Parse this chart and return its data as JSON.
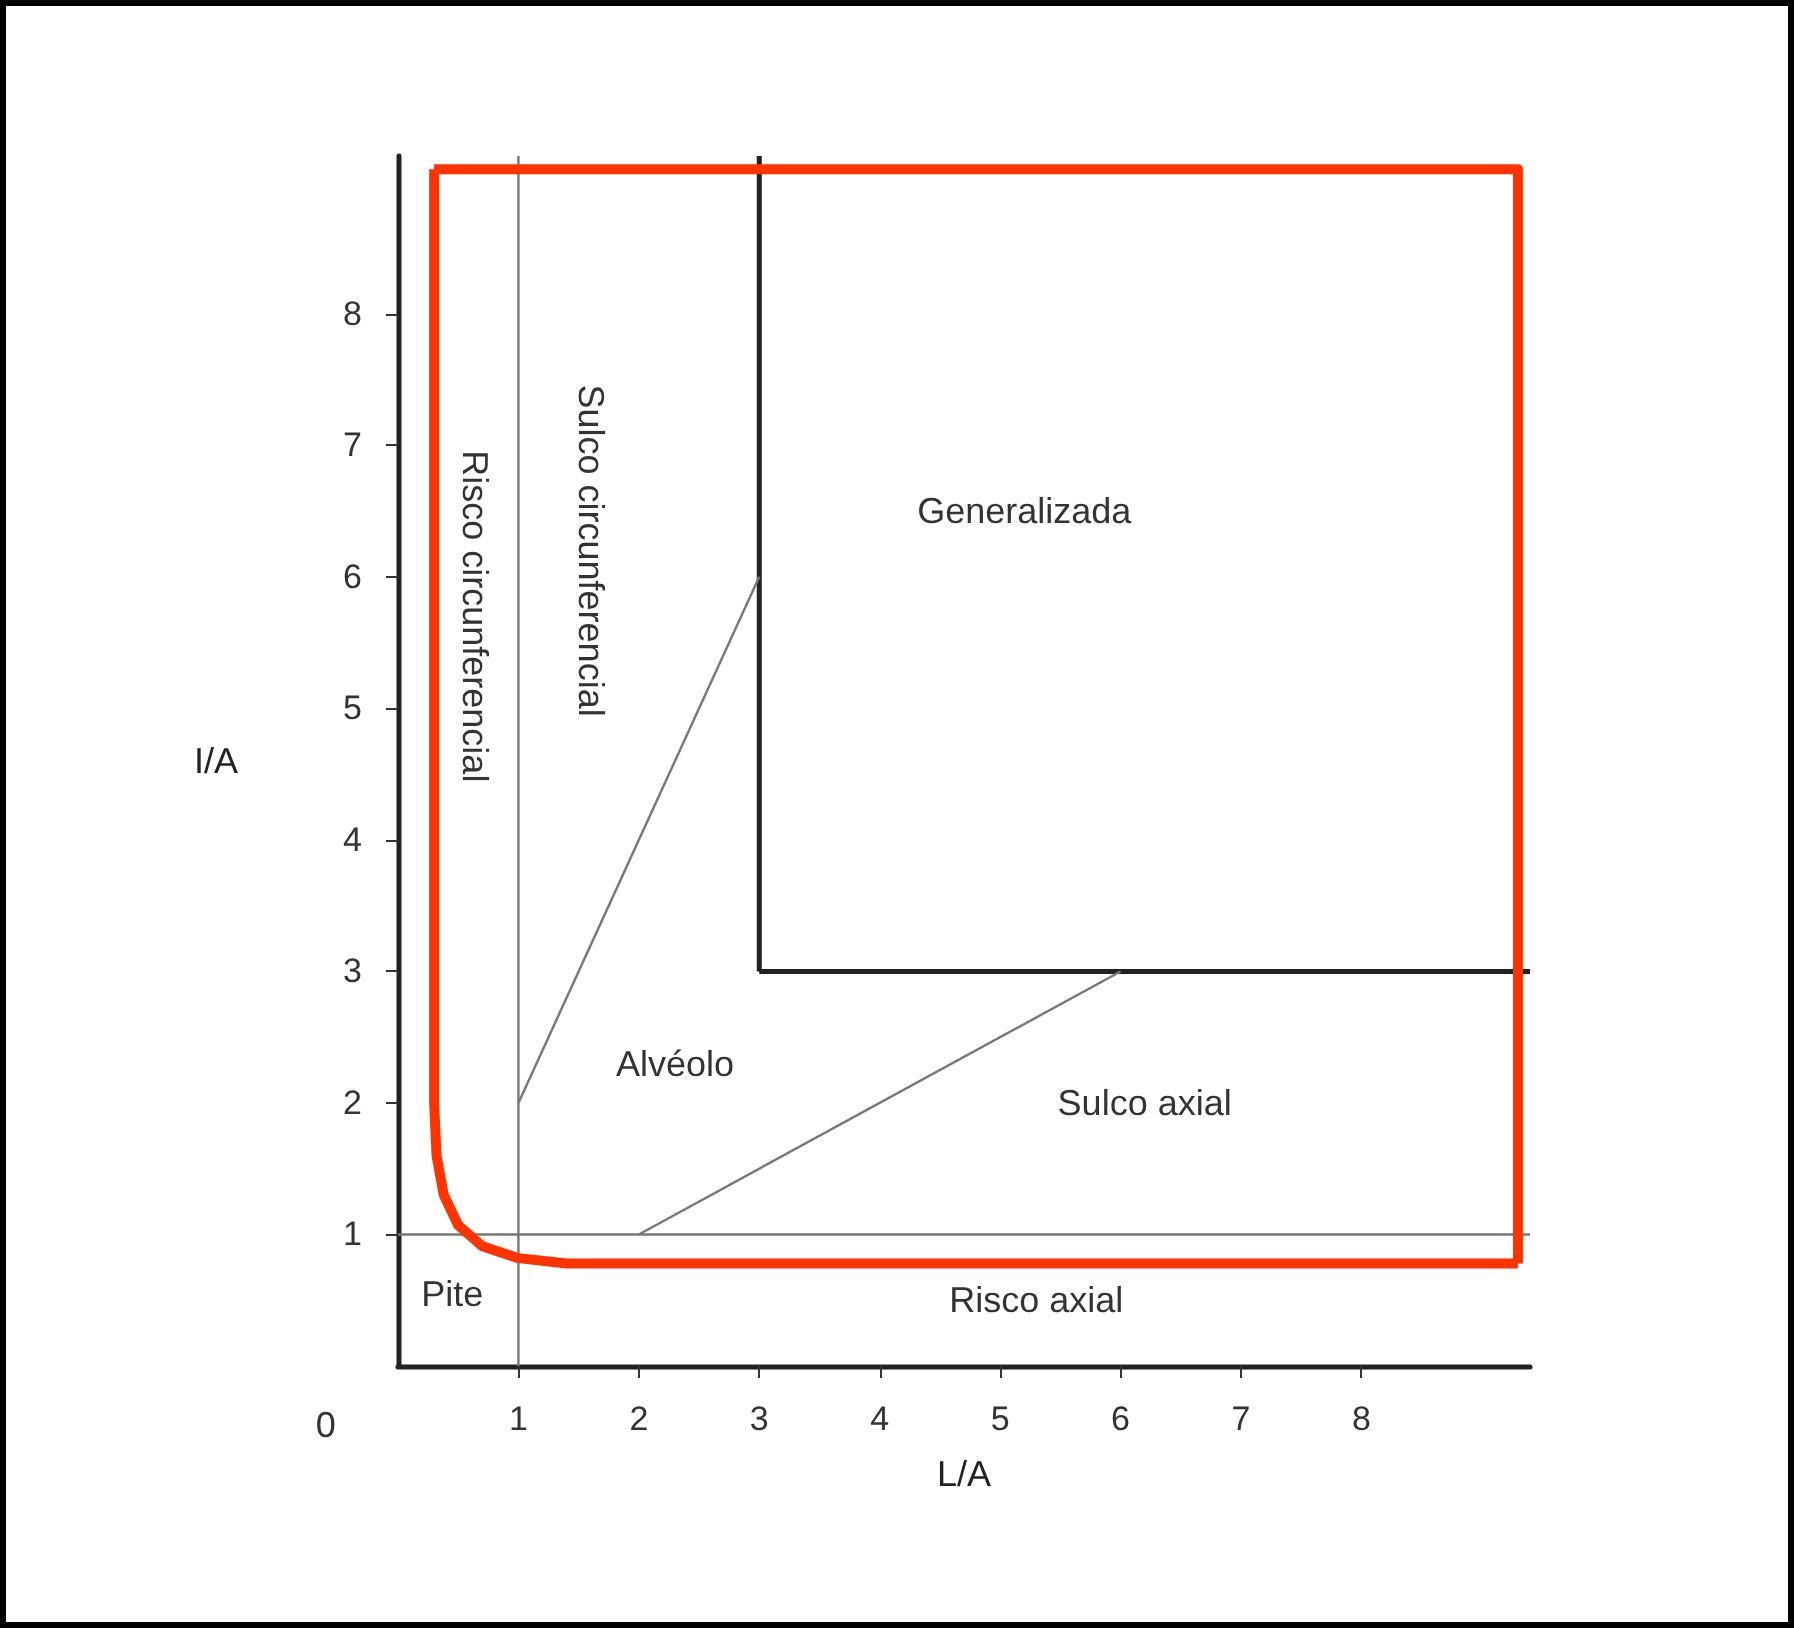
{
  "chart_data": {
    "type": "line",
    "xlabel": "L/A",
    "ylabel": "I/A",
    "xlim": [
      0,
      9.4
    ],
    "ylim": [
      0,
      9.2
    ],
    "xticks": [
      1,
      2,
      3,
      4,
      5,
      6,
      7,
      8
    ],
    "yticks": [
      1,
      2,
      3,
      4,
      5,
      6,
      7,
      8
    ],
    "grid": false,
    "marker": "none",
    "line_style": "solid",
    "series": [
      {
        "color": "#777777",
        "x": [
          1,
          1
        ],
        "values": [
          0,
          9.2
        ]
      },
      {
        "color": "#777777",
        "x": [
          0,
          9.4
        ],
        "values": [
          1,
          1
        ]
      },
      {
        "color": "#222222",
        "x": [
          3,
          3
        ],
        "values": [
          9.2,
          3
        ]
      },
      {
        "color": "#222222",
        "x": [
          3,
          9.4
        ],
        "values": [
          3,
          3
        ]
      },
      {
        "color": "#777777",
        "x": [
          1,
          3
        ],
        "values": [
          2,
          6
        ]
      },
      {
        "color": "#777777",
        "x": [
          2,
          6
        ],
        "values": [
          1,
          3
        ]
      },
      {
        "color": "#ff3300",
        "x": [
          0.3,
          0.3,
          0.32,
          0.38,
          0.5,
          0.7,
          1,
          1.4,
          9.3
        ],
        "values": [
          9.1,
          2,
          1.6,
          1.3,
          1.07,
          0.91,
          0.82,
          0.78,
          0.78
        ]
      },
      {
        "color": "#ff3300",
        "x": [
          0.3,
          9.3,
          9.3
        ],
        "values": [
          9.1,
          9.1,
          0.78
        ]
      }
    ],
    "annotations": [
      "0",
      "Pite",
      "Risco axial",
      "Sulco axial",
      "Alvéolo",
      "Generalizada",
      "Risco circunferencial",
      "Sulco circunferencial"
    ]
  }
}
